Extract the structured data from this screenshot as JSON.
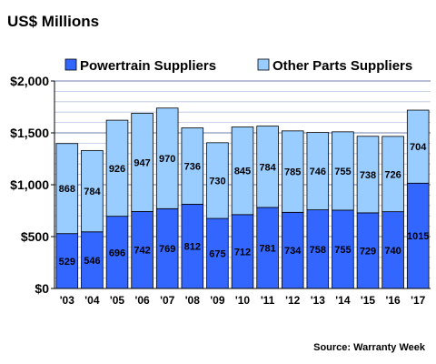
{
  "chart_data": {
    "type": "bar",
    "stacked": true,
    "title": "US$ Millions",
    "source": "Source: Warranty Week",
    "categories": [
      "'03",
      "'04",
      "'05",
      "'06",
      "'07",
      "'08",
      "'09",
      "'10",
      "'11",
      "'12",
      "'13",
      "'14",
      "'15",
      "'16",
      "'17"
    ],
    "series": [
      {
        "name": "Powertrain Suppliers",
        "color": "#3366ff",
        "values": [
          529,
          546,
          696,
          742,
          769,
          812,
          675,
          712,
          781,
          734,
          758,
          755,
          729,
          740,
          1015
        ]
      },
      {
        "name": "Other Parts Suppliers",
        "color": "#99ccff",
        "values": [
          868,
          784,
          926,
          947,
          970,
          736,
          730,
          845,
          784,
          785,
          746,
          755,
          738,
          726,
          704
        ]
      }
    ],
    "yticks": [
      "$0",
      "$500",
      "$1,000",
      "$1,500",
      "$2,000"
    ],
    "ylim": [
      0,
      2000
    ],
    "grid": true,
    "legend": "top"
  }
}
